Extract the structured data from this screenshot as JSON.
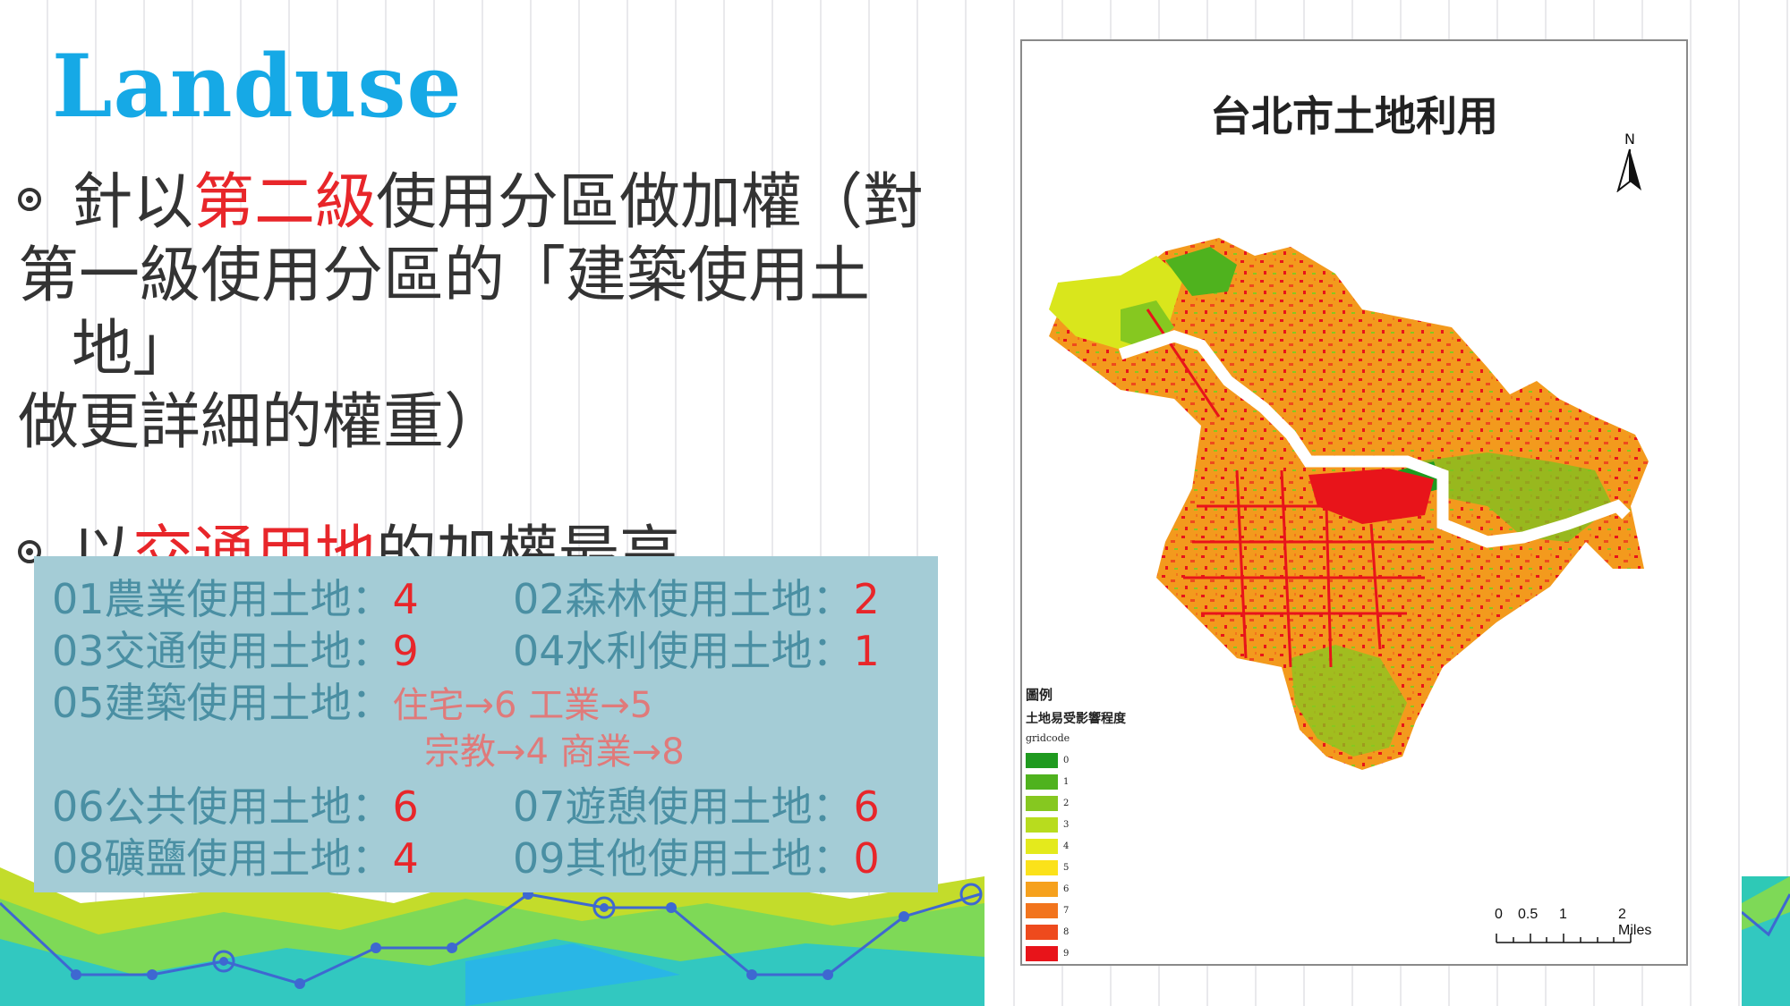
{
  "slide": {
    "title": "Landuse",
    "bullet1": {
      "pre": "針以",
      "red": "第二級",
      "post1": "使用分區做加權（對",
      "post2": "第一級使用分區的「建築使用土地」",
      "post3": "做更詳細的權重）"
    },
    "bullet2": {
      "pre": "以",
      "red": "交通用地",
      "post": "的加權最高"
    }
  },
  "weights": {
    "r1a_label": "01農業使用土地：",
    "r1a_val": "4",
    "r1b_label": "02森林使用土地：",
    "r1b_val": "2",
    "r2a_label": "03交通使用土地：",
    "r2a_val": "9",
    "r2b_label": "04水利使用土地：",
    "r2b_val": "1",
    "r3_label": "05建築使用土地：",
    "r3_sub1": "住宅→6  工業→5",
    "r3_sub2": "宗教→4  商業→8",
    "r4a_label": "06公共使用土地：",
    "r4a_val": "6",
    "r4b_label": "07遊憩使用土地：",
    "r4b_val": "6",
    "r5a_label": "08礦鹽使用土地：",
    "r5a_val": "4",
    "r5b_label": "09其他使用土地：",
    "r5b_val": "0"
  },
  "map": {
    "title": "台北市土地利用",
    "north_label": "N",
    "legend_title": "圖例",
    "legend_subtitle": "土地易受影響程度",
    "legend_field": "gridcode",
    "legend_items": [
      {
        "label": "0",
        "color": "#1f9a1f"
      },
      {
        "label": "1",
        "color": "#4fb21e"
      },
      {
        "label": "2",
        "color": "#86c820"
      },
      {
        "label": "3",
        "color": "#b8dc1e"
      },
      {
        "label": "4",
        "color": "#e4ea1c"
      },
      {
        "label": "5",
        "color": "#fbe21a"
      },
      {
        "label": "6",
        "color": "#f6a11d"
      },
      {
        "label": "7",
        "color": "#f2741d"
      },
      {
        "label": "8",
        "color": "#ee4a1d"
      },
      {
        "label": "9",
        "color": "#e8141a"
      }
    ],
    "scale": {
      "l0": "0",
      "l1": "0.5",
      "l2": "1",
      "l3": "2 Miles"
    }
  },
  "colors": {
    "title_blue": "#16a9e6",
    "accent_red": "#e8262a",
    "box_bg": "#a4ccd6",
    "box_text": "#4a8fa3"
  }
}
